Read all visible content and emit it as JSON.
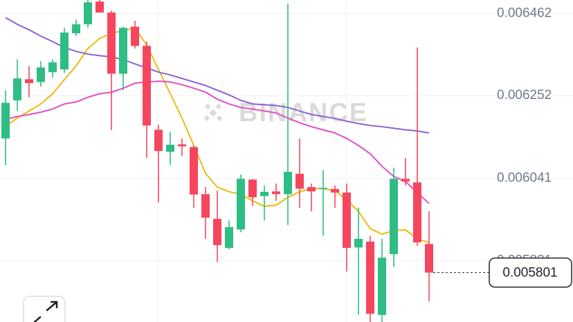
{
  "chart_data": {
    "type": "candlestick",
    "watermark": "BINANCE",
    "up_color": "#2ebd85",
    "down_color": "#f6465d",
    "ylim": [
      0.005675,
      0.006496
    ],
    "yticks": [
      0.006462,
      0.006252,
      0.006041,
      0.005831
    ],
    "grid": true,
    "last_price": 0.005801,
    "open": [
      0.006143,
      0.00624,
      0.006294,
      0.006287,
      0.006312,
      0.006319,
      0.006411,
      0.006434,
      0.006492,
      0.006464,
      0.006308,
      0.006428,
      0.006379,
      0.006165,
      0.006109,
      0.006128,
      0.006121,
      0.006001,
      0.005938,
      0.005864,
      0.005911,
      0.006038,
      0.005996,
      0.006008,
      0.006001,
      0.006053,
      0.006019,
      0.006014,
      0.006014,
      0.006005,
      0.005865,
      0.00588,
      0.005693,
      0.005848,
      0.00604,
      0.006031,
      0.005874
    ],
    "high": [
      0.006266,
      0.006345,
      0.006328,
      0.00634,
      0.006345,
      0.006425,
      0.006446,
      0.006505,
      0.006505,
      0.006469,
      0.006428,
      0.006443,
      0.00639,
      0.006178,
      0.00616,
      0.006143,
      0.006125,
      0.006019,
      0.00601,
      0.005934,
      0.006051,
      0.00604,
      0.006023,
      0.006028,
      0.006487,
      0.006143,
      0.006028,
      0.006063,
      0.006023,
      0.006028,
      0.005966,
      0.005895,
      0.005887,
      0.006068,
      0.006093,
      0.006375,
      0.005957
    ],
    "low": [
      0.006075,
      0.006213,
      0.006248,
      0.006275,
      0.006298,
      0.00631,
      0.006404,
      0.006425,
      0.006464,
      0.006164,
      0.006266,
      0.006372,
      0.006093,
      0.00598,
      0.006075,
      0.006098,
      0.005966,
      0.005887,
      0.005828,
      0.00586,
      0.005904,
      0.005971,
      0.005934,
      0.005984,
      0.005922,
      0.005966,
      0.005957,
      0.005895,
      0.005966,
      0.005804,
      0.005693,
      0.005675,
      0.005675,
      0.005816,
      0.006023,
      0.005869,
      0.005728
    ],
    "close": [
      0.006234,
      0.006296,
      0.006284,
      0.006324,
      0.006337,
      0.006413,
      0.006434,
      0.00649,
      0.006464,
      0.006308,
      0.006425,
      0.006379,
      0.006176,
      0.006111,
      0.006127,
      0.006123,
      0.006,
      0.005941,
      0.005871,
      0.005917,
      0.00604,
      0.005993,
      0.006007,
      0.006001,
      0.006058,
      0.006015,
      0.006008,
      0.006017,
      0.006005,
      0.005864,
      0.005887,
      0.005696,
      0.005839,
      0.00604,
      0.006033,
      0.005878,
      0.005801
    ],
    "lines": [
      {
        "color": "#f0b90b",
        "values": [
          0.006174,
          0.006195,
          0.006213,
          0.006231,
          0.006257,
          0.006293,
          0.006328,
          0.006372,
          0.006398,
          0.006411,
          0.006418,
          0.006425,
          0.006381,
          0.006319,
          0.006257,
          0.006195,
          0.006125,
          0.006054,
          0.006019,
          0.006007,
          0.006001,
          0.005984,
          0.00597,
          0.005973,
          0.005993,
          0.006007,
          0.006015,
          0.006015,
          0.00601,
          0.005987,
          0.005957,
          0.005913,
          0.005899,
          0.005908,
          0.00591,
          0.005887,
          0.005878
        ]
      },
      {
        "color": "#e44fc0",
        "values": [
          0.006192,
          0.006199,
          0.006204,
          0.00621,
          0.006218,
          0.006231,
          0.006236,
          0.006248,
          0.006257,
          0.006261,
          0.006271,
          0.006284,
          0.006287,
          0.006289,
          0.006287,
          0.00628,
          0.006271,
          0.006261,
          0.006243,
          0.006231,
          0.006222,
          0.006218,
          0.006213,
          0.006208,
          0.006195,
          0.006183,
          0.006173,
          0.006165,
          0.006157,
          0.006143,
          0.006125,
          0.006104,
          0.006072,
          0.006046,
          0.006033,
          0.006005,
          0.005977
        ]
      },
      {
        "color": "#8c62d4",
        "values": [
          0.006451,
          0.006434,
          0.00642,
          0.006404,
          0.00639,
          0.006375,
          0.006365,
          0.006358,
          0.006354,
          0.006351,
          0.006344,
          0.006333,
          0.006323,
          0.006312,
          0.006305,
          0.006296,
          0.006287,
          0.006278,
          0.006266,
          0.006254,
          0.00624,
          0.006231,
          0.006229,
          0.006227,
          0.006222,
          0.006213,
          0.006204,
          0.006199,
          0.006194,
          0.006187,
          0.006181,
          0.006176,
          0.006173,
          0.006169,
          0.006165,
          0.006162,
          0.006157
        ]
      }
    ]
  }
}
